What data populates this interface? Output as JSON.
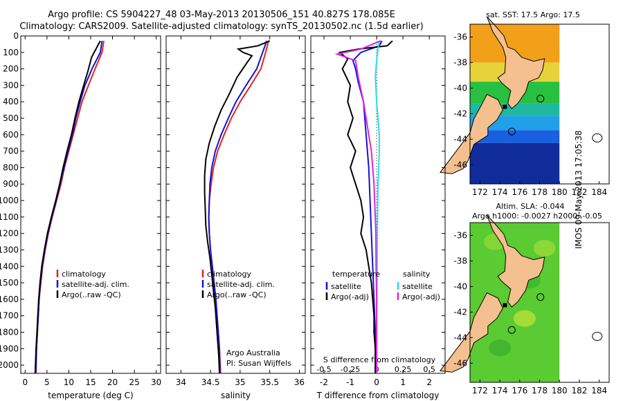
{
  "header": {
    "line1": "Argo profile: CS 5904227_48 03-May-2013 20130506_151 40.827S 178.085E",
    "line2": "Climatology: CARS2009. Satellite-adjusted climatology: synTS_20130502.nc (1.5d earlier)"
  },
  "side_label": "IMOS 09-May-2013 17:05:38",
  "colors": {
    "red": "#e0201e",
    "blue": "#1010d8",
    "black": "#000000",
    "cyan": "#20e0e8",
    "magenta": "#e020e0",
    "land": "#f5c090"
  },
  "chart_data": [
    {
      "type": "line",
      "id": "temperature",
      "xlabel": "temperature (deg C)",
      "ylabel": "",
      "xlim": [
        -1,
        31
      ],
      "ylim": [
        2050,
        0
      ],
      "xticks": [
        "0",
        "5",
        "10",
        "15",
        "20",
        "25",
        "30"
      ],
      "yticks": [
        "0",
        "100",
        "200",
        "300",
        "400",
        "500",
        "600",
        "700",
        "800",
        "900",
        "1000",
        "1100",
        "1200",
        "1300",
        "1400",
        "1500",
        "1600",
        "1700",
        "1800",
        "1900",
        "2000"
      ],
      "series": [
        {
          "name": "climatology",
          "color": "red",
          "points": [
            [
              18,
              30
            ],
            [
              17.6,
              100
            ],
            [
              16,
              200
            ],
            [
              14.5,
              300
            ],
            [
              13,
              400
            ],
            [
              12,
              500
            ],
            [
              11,
              600
            ],
            [
              10,
              700
            ],
            [
              9,
              800
            ],
            [
              8.2,
              900
            ],
            [
              7.2,
              1000
            ],
            [
              6.2,
              1100
            ],
            [
              5.3,
              1200
            ],
            [
              4.6,
              1300
            ],
            [
              4.0,
              1400
            ],
            [
              3.6,
              1500
            ],
            [
              3.2,
              1600
            ],
            [
              3.0,
              1700
            ],
            [
              2.8,
              1800
            ],
            [
              2.6,
              1900
            ],
            [
              2.5,
              2050
            ]
          ]
        },
        {
          "name": "satellite-adj. clim.",
          "color": "blue",
          "points": [
            [
              17.6,
              30
            ],
            [
              17.2,
              100
            ],
            [
              15.3,
              200
            ],
            [
              13.7,
              300
            ],
            [
              12.6,
              400
            ],
            [
              11.6,
              500
            ],
            [
              10.8,
              600
            ],
            [
              9.8,
              700
            ],
            [
              8.9,
              800
            ],
            [
              8.0,
              900
            ],
            [
              7.1,
              1000
            ],
            [
              6.1,
              1100
            ],
            [
              5.2,
              1200
            ],
            [
              4.5,
              1300
            ],
            [
              3.9,
              1400
            ],
            [
              3.5,
              1500
            ],
            [
              3.2,
              1600
            ],
            [
              3.0,
              1700
            ],
            [
              2.8,
              1800
            ],
            [
              2.6,
              1900
            ],
            [
              2.4,
              2050
            ]
          ]
        },
        {
          "name": "Argo(..raw -QC)",
          "color": "black",
          "points": [
            [
              17.2,
              30
            ],
            [
              16,
              90
            ],
            [
              15.2,
              130
            ],
            [
              14.3,
              220
            ],
            [
              13.4,
              300
            ],
            [
              12.3,
              400
            ],
            [
              11.4,
              500
            ],
            [
              10.6,
              600
            ],
            [
              9.6,
              700
            ],
            [
              8.7,
              800
            ],
            [
              7.9,
              900
            ],
            [
              7.0,
              1000
            ],
            [
              6.0,
              1100
            ],
            [
              5.1,
              1200
            ],
            [
              4.4,
              1300
            ],
            [
              3.8,
              1400
            ],
            [
              3.4,
              1500
            ],
            [
              3.1,
              1600
            ],
            [
              2.9,
              1700
            ],
            [
              2.7,
              1800
            ],
            [
              2.5,
              1900
            ],
            [
              2.3,
              2050
            ]
          ]
        }
      ],
      "legend": {
        "entries": [
          "climatology",
          "satellite-adj. clim.",
          "Argo(..raw -QC)"
        ],
        "colors": [
          "red",
          "blue",
          "black"
        ],
        "placement": "lower-right"
      }
    },
    {
      "type": "line",
      "id": "salinity",
      "xlabel": "salinity",
      "ylabel": "",
      "xlim": [
        33.75,
        36.1
      ],
      "ylim": [
        2050,
        0
      ],
      "xticks": [
        "34",
        "34.5",
        "35",
        "35.5",
        "36"
      ],
      "series": [
        {
          "name": "climatology",
          "color": "red",
          "points": [
            [
              35.48,
              30
            ],
            [
              35.43,
              100
            ],
            [
              35.35,
              200
            ],
            [
              35.18,
              300
            ],
            [
              35.0,
              400
            ],
            [
              34.85,
              500
            ],
            [
              34.73,
              600
            ],
            [
              34.62,
              700
            ],
            [
              34.55,
              800
            ],
            [
              34.51,
              900
            ],
            [
              34.48,
              1000
            ],
            [
              34.47,
              1100
            ],
            [
              34.48,
              1200
            ],
            [
              34.5,
              1300
            ],
            [
              34.53,
              1400
            ],
            [
              34.56,
              1500
            ],
            [
              34.59,
              1600
            ],
            [
              34.61,
              1700
            ],
            [
              34.63,
              1800
            ],
            [
              34.65,
              1900
            ],
            [
              34.67,
              2050
            ]
          ]
        },
        {
          "name": "satellite-adj. clim.",
          "color": "blue",
          "points": [
            [
              35.45,
              30
            ],
            [
              35.38,
              100
            ],
            [
              35.28,
              200
            ],
            [
              35.1,
              300
            ],
            [
              34.93,
              400
            ],
            [
              34.8,
              500
            ],
            [
              34.68,
              600
            ],
            [
              34.58,
              700
            ],
            [
              34.52,
              800
            ],
            [
              34.49,
              900
            ],
            [
              34.48,
              1000
            ],
            [
              34.47,
              1100
            ],
            [
              34.48,
              1200
            ],
            [
              34.5,
              1300
            ],
            [
              34.53,
              1400
            ],
            [
              34.56,
              1500
            ],
            [
              34.59,
              1600
            ],
            [
              34.61,
              1700
            ],
            [
              34.63,
              1800
            ],
            [
              34.65,
              1900
            ],
            [
              34.66,
              2050
            ]
          ]
        },
        {
          "name": "Argo(..raw -QC)",
          "color": "black",
          "points": [
            [
              35.5,
              30
            ],
            [
              35.3,
              60
            ],
            [
              34.97,
              80
            ],
            [
              35.05,
              100
            ],
            [
              35.2,
              120
            ],
            [
              35.12,
              160
            ],
            [
              34.95,
              250
            ],
            [
              34.82,
              350
            ],
            [
              34.68,
              450
            ],
            [
              34.57,
              550
            ],
            [
              34.48,
              650
            ],
            [
              34.42,
              750
            ],
            [
              34.4,
              850
            ],
            [
              34.4,
              950
            ],
            [
              34.41,
              1050
            ],
            [
              34.42,
              1150
            ],
            [
              34.45,
              1250
            ],
            [
              34.49,
              1350
            ],
            [
              34.52,
              1450
            ],
            [
              34.55,
              1550
            ],
            [
              34.58,
              1650
            ],
            [
              34.6,
              1750
            ],
            [
              34.62,
              1850
            ],
            [
              34.64,
              1950
            ],
            [
              34.65,
              2050
            ]
          ]
        }
      ],
      "legend": {
        "entries": [
          "climatology",
          "satellite-adj. clim.",
          "Argo(..raw -QC)"
        ],
        "colors": [
          "red",
          "blue",
          "black"
        ],
        "placement": "lower-right"
      },
      "annotation": [
        "Argo Australia",
        "PI: Susan Wijffels"
      ]
    },
    {
      "type": "line",
      "id": "difference",
      "xlabel": "T difference from climatology",
      "top_xlabel": "S difference from climatology",
      "xlim": [
        -2.5,
        2.6
      ],
      "ylim": [
        2050,
        0
      ],
      "xticks": [
        "-2",
        "-1",
        "0",
        "1",
        "2"
      ],
      "top_xticks": [
        "-0.5",
        "-0.25",
        "0",
        "0.25",
        "0.5"
      ],
      "series": [
        {
          "name": "temperature satellite",
          "color": "blue",
          "points": [
            [
              0.2,
              30
            ],
            [
              0.1,
              60
            ],
            [
              -0.6,
              100
            ],
            [
              -0.9,
              150
            ],
            [
              -0.8,
              200
            ],
            [
              -0.7,
              280
            ],
            [
              -0.5,
              400
            ],
            [
              -0.4,
              600
            ],
            [
              -0.3,
              800
            ],
            [
              -0.25,
              1000
            ],
            [
              -0.2,
              1200
            ],
            [
              -0.15,
              1400
            ],
            [
              -0.1,
              1600
            ],
            [
              -0.05,
              1800
            ],
            [
              -0.05,
              2050
            ]
          ]
        },
        {
          "name": "temperature Argo(-adj)",
          "color": "black",
          "points": [
            [
              0.6,
              30
            ],
            [
              0.4,
              60
            ],
            [
              -0.7,
              80
            ],
            [
              -1.4,
              100
            ],
            [
              -1.1,
              140
            ],
            [
              -1.3,
              200
            ],
            [
              -1.0,
              300
            ],
            [
              -1.1,
              400
            ],
            [
              -0.9,
              500
            ],
            [
              -1.1,
              600
            ],
            [
              -0.8,
              700
            ],
            [
              -1.0,
              800
            ],
            [
              -0.8,
              900
            ],
            [
              -0.6,
              1000
            ],
            [
              -0.5,
              1100
            ],
            [
              -0.6,
              1200
            ],
            [
              -0.4,
              1300
            ],
            [
              -0.3,
              1400
            ],
            [
              -0.2,
              1500
            ],
            [
              -0.15,
              1600
            ],
            [
              -0.1,
              1700
            ],
            [
              -0.1,
              1800
            ],
            [
              -0.05,
              1900
            ],
            [
              -0.05,
              2050
            ]
          ]
        },
        {
          "name": "salinity satellite",
          "color": "cyan",
          "points": [
            [
              0.1,
              30
            ],
            [
              0.05,
              80
            ],
            [
              0.0,
              150
            ],
            [
              -0.05,
              250
            ],
            [
              0.0,
              400
            ],
            [
              0.05,
              500
            ],
            [
              0.1,
              600
            ],
            [
              0.1,
              700
            ],
            [
              0.08,
              800
            ],
            [
              0.05,
              900
            ],
            [
              0.04,
              1000
            ],
            [
              0.03,
              1200
            ],
            [
              0.02,
              1400
            ],
            [
              0.01,
              1600
            ],
            [
              0.0,
              1800
            ],
            [
              0.0,
              2050
            ]
          ]
        },
        {
          "name": "salinity Argo(-adj)",
          "color": "magenta",
          "points": [
            [
              0.15,
              30
            ],
            [
              -0.6,
              80
            ],
            [
              -1.5,
              110
            ],
            [
              -0.8,
              150
            ],
            [
              -0.7,
              250
            ],
            [
              -0.5,
              400
            ],
            [
              -0.4,
              500
            ],
            [
              -0.3,
              600
            ],
            [
              -0.2,
              700
            ],
            [
              -0.15,
              800
            ],
            [
              -0.1,
              900
            ],
            [
              -0.08,
              1000
            ],
            [
              -0.05,
              1100
            ],
            [
              -0.03,
              1200
            ],
            [
              -0.02,
              1400
            ],
            [
              0.0,
              1600
            ],
            [
              0.0,
              1800
            ],
            [
              0.0,
              2050
            ]
          ]
        }
      ],
      "legend": {
        "titles": [
          "temperature",
          "salinity"
        ],
        "entries": [
          "satellite",
          "Argo(-adj)",
          "satellite",
          "Argo(-adj)"
        ],
        "colors": [
          "blue",
          "black",
          "cyan",
          "magenta"
        ],
        "placement": "lower-center"
      }
    }
  ],
  "maps": [
    {
      "id": "sst",
      "title": "sat. SST: 17.5 Argo: 17.5",
      "yticks": [
        "-36",
        "-38",
        "-40",
        "-42",
        "-44",
        "-46"
      ],
      "xticks": [
        "172",
        "174",
        "176",
        "178",
        "180",
        "182",
        "184"
      ]
    },
    {
      "id": "sla",
      "title": "Altim. SLA: -0.044",
      "subtitle": "Argo h1000: -0.0027 h2000: -0.05",
      "yticks": [
        "-36",
        "-38",
        "-40",
        "-42",
        "-44",
        "-46"
      ],
      "xticks": [
        "172",
        "174",
        "176",
        "178",
        "180",
        "182",
        "184"
      ]
    }
  ]
}
